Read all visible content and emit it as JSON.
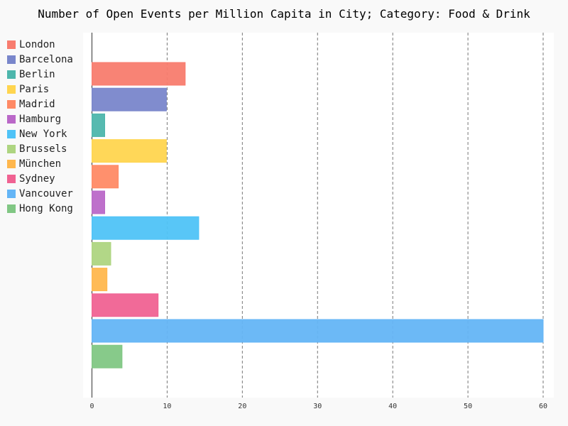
{
  "chart_data": {
    "type": "bar",
    "orientation": "horizontal",
    "title": "Number of Open Events per Million Capita in City; Category: Food & Drink",
    "xlabel": "",
    "ylabel": "",
    "xlim": [
      0,
      60
    ],
    "x_ticks": [
      "0",
      "10",
      "20",
      "30",
      "40",
      "50",
      "60"
    ],
    "grid": "vertical dashed",
    "legend_position": "left",
    "categories": [
      "London",
      "Barcelona",
      "Berlin",
      "Paris",
      "Madrid",
      "Hamburg",
      "New York",
      "Brussels",
      "München",
      "Sydney",
      "Vancouver",
      "Hong Kong"
    ],
    "values": [
      12.4,
      9.9,
      1.7,
      9.9,
      3.5,
      1.7,
      14.2,
      2.5,
      2.0,
      8.8,
      60.0,
      4.0
    ],
    "colors": [
      "#f87c6e",
      "#7986cb",
      "#4db6ac",
      "#ffd54f",
      "#ff8a65",
      "#ba68c8",
      "#4fc3f7",
      "#aed581",
      "#ffb74d",
      "#f06292",
      "#64b5f6",
      "#81c784"
    ]
  }
}
